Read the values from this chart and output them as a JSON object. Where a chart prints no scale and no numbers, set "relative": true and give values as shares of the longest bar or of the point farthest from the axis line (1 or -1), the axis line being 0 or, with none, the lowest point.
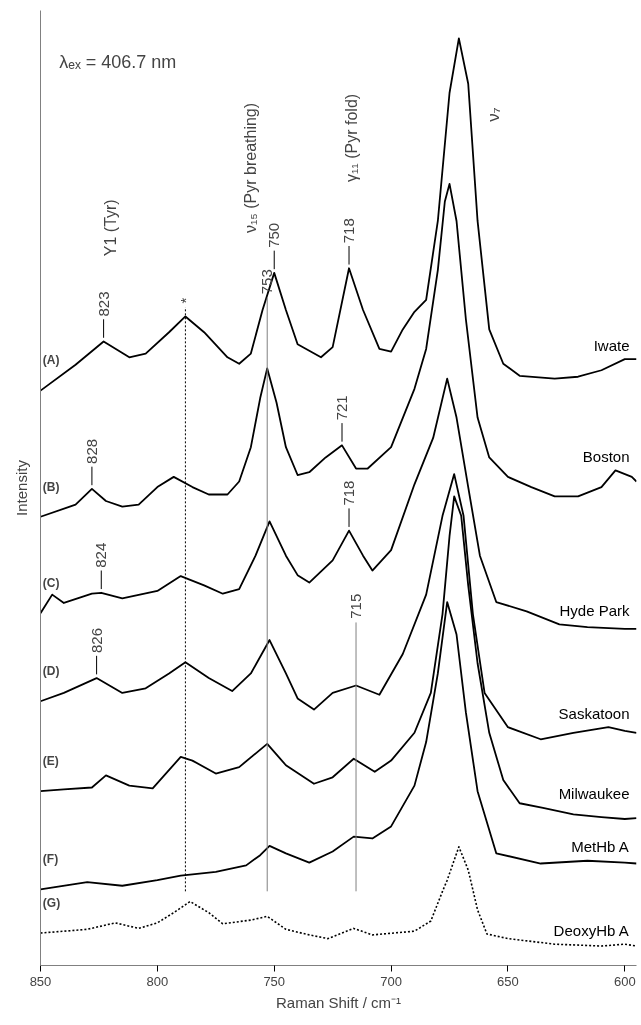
{
  "chart_data": {
    "type": "line",
    "relative": true,
    "xlabel": "Raman Shift / cm⁻¹",
    "ylabel": "Intensity",
    "xlim": [
      850,
      595
    ],
    "xticks": [
      850,
      800,
      750,
      700,
      650,
      600
    ],
    "grid": false,
    "marker": "none",
    "tick_labels": "x",
    "series": [
      {
        "name": "Iwate",
        "color": "#000000",
        "x": [
          850,
          835,
          823,
          812,
          805,
          795,
          788,
          780,
          770,
          765,
          760,
          755,
          750,
          745,
          740,
          730,
          725,
          718,
          712,
          705,
          700,
          695,
          690,
          685,
          680,
          675,
          671,
          667,
          663,
          658,
          652,
          645,
          630,
          620,
          610,
          600,
          595
        ],
        "values": [
          0.62,
          0.648,
          0.673,
          0.656,
          0.66,
          0.683,
          0.7,
          0.683,
          0.656,
          0.649,
          0.66,
          0.707,
          0.747,
          0.707,
          0.67,
          0.656,
          0.667,
          0.752,
          0.707,
          0.665,
          0.662,
          0.686,
          0.705,
          0.718,
          0.803,
          0.941,
          1.0,
          0.951,
          0.803,
          0.686,
          0.649,
          0.636,
          0.633,
          0.635,
          0.642,
          0.654,
          0.654
        ]
      },
      {
        "name": "Boston",
        "color": "#000000",
        "x": [
          850,
          835,
          828,
          822,
          815,
          808,
          800,
          793,
          785,
          778,
          770,
          765,
          760,
          756,
          753,
          749,
          745,
          740,
          735,
          728,
          721,
          715,
          710,
          700,
          690,
          685,
          680,
          677,
          675,
          672,
          668,
          663,
          658,
          650,
          640,
          630,
          620,
          610,
          604,
          597,
          595
        ],
        "values": [
          0.484,
          0.497,
          0.514,
          0.501,
          0.495,
          0.497,
          0.516,
          0.527,
          0.516,
          0.508,
          0.508,
          0.522,
          0.559,
          0.612,
          0.644,
          0.607,
          0.559,
          0.529,
          0.532,
          0.548,
          0.561,
          0.536,
          0.536,
          0.559,
          0.622,
          0.665,
          0.75,
          0.824,
          0.843,
          0.803,
          0.697,
          0.591,
          0.548,
          0.527,
          0.516,
          0.506,
          0.506,
          0.516,
          0.534,
          0.527,
          0.522
        ]
      },
      {
        "name": "Hyde Park",
        "color": "#000000",
        "x": [
          850,
          845,
          840,
          828,
          824,
          815,
          800,
          790,
          780,
          772,
          765,
          758,
          752,
          745,
          740,
          735,
          725,
          718,
          712,
          708,
          700,
          690,
          682,
          676,
          672,
          667,
          662,
          655,
          642,
          628,
          616,
          600,
          595
        ],
        "values": [
          0.38,
          0.4,
          0.391,
          0.401,
          0.402,
          0.396,
          0.404,
          0.42,
          0.41,
          0.401,
          0.406,
          0.442,
          0.479,
          0.442,
          0.421,
          0.413,
          0.437,
          0.469,
          0.442,
          0.426,
          0.448,
          0.519,
          0.569,
          0.633,
          0.591,
          0.516,
          0.442,
          0.392,
          0.382,
          0.368,
          0.365,
          0.363,
          0.363
        ]
      },
      {
        "name": "Saskatoon",
        "color": "#000000",
        "x": [
          850,
          840,
          826,
          815,
          805,
          795,
          788,
          778,
          768,
          760,
          752,
          745,
          740,
          733,
          725,
          715,
          705,
          695,
          685,
          678,
          673,
          669,
          665,
          660,
          650,
          636,
          622,
          607,
          600,
          595
        ],
        "values": [
          0.285,
          0.294,
          0.31,
          0.294,
          0.299,
          0.315,
          0.327,
          0.31,
          0.296,
          0.315,
          0.351,
          0.315,
          0.288,
          0.276,
          0.294,
          0.302,
          0.292,
          0.336,
          0.4,
          0.485,
          0.53,
          0.485,
          0.379,
          0.294,
          0.257,
          0.244,
          0.251,
          0.257,
          0.253,
          0.251
        ]
      },
      {
        "name": "Milwaukee",
        "color": "#000000",
        "x": [
          850,
          840,
          828,
          822,
          812,
          802,
          790,
          785,
          775,
          765,
          753,
          745,
          733,
          725,
          716,
          707,
          700,
          690,
          683,
          678,
          675,
          673,
          670,
          667,
          663,
          658,
          652,
          645,
          635,
          622,
          610,
          600,
          595
        ],
        "values": [
          0.188,
          0.19,
          0.192,
          0.205,
          0.194,
          0.191,
          0.225,
          0.221,
          0.207,
          0.214,
          0.239,
          0.216,
          0.196,
          0.203,
          0.223,
          0.209,
          0.221,
          0.251,
          0.294,
          0.379,
          0.463,
          0.506,
          0.485,
          0.41,
          0.326,
          0.251,
          0.2,
          0.175,
          0.17,
          0.163,
          0.16,
          0.158,
          0.159
        ]
      },
      {
        "name": "MetHb A",
        "color": "#000000",
        "x": [
          850,
          830,
          815,
          800,
          790,
          775,
          762,
          756,
          752,
          745,
          735,
          725,
          716,
          708,
          700,
          690,
          685,
          680,
          676,
          672,
          668,
          663,
          655,
          636,
          616,
          600,
          595
        ],
        "values": [
          0.082,
          0.09,
          0.086,
          0.092,
          0.097,
          0.101,
          0.108,
          0.119,
          0.129,
          0.121,
          0.111,
          0.123,
          0.139,
          0.137,
          0.15,
          0.194,
          0.241,
          0.315,
          0.392,
          0.357,
          0.273,
          0.188,
          0.121,
          0.11,
          0.113,
          0.111,
          0.11
        ]
      },
      {
        "name": "DeoxyHb A",
        "color": "#000000",
        "line_style": "dotted",
        "x": [
          850,
          830,
          818,
          808,
          800,
          793,
          786,
          778,
          772,
          760,
          753,
          745,
          735,
          727,
          716,
          708,
          690,
          683,
          678,
          676,
          671,
          667,
          663,
          659,
          650,
          630,
          610,
          600,
          595
        ],
        "values": [
          0.035,
          0.039,
          0.046,
          0.04,
          0.046,
          0.057,
          0.069,
          0.057,
          0.045,
          0.049,
          0.053,
          0.039,
          0.033,
          0.029,
          0.04,
          0.033,
          0.037,
          0.048,
          0.08,
          0.092,
          0.128,
          0.103,
          0.06,
          0.034,
          0.029,
          0.023,
          0.021,
          0.023,
          0.021
        ]
      }
    ],
    "ref_lines": [
      {
        "axis": "x",
        "value": 788,
        "label": "*",
        "line_style": "dotted",
        "color": "#000000"
      },
      {
        "axis": "x",
        "value": 753,
        "label": "753",
        "line_style": "solid",
        "color": "#808080"
      },
      {
        "axis": "x",
        "value": 715,
        "label": "715",
        "line_style": "solid",
        "color": "#808080"
      }
    ],
    "annotations": [
      "λₑₓ = 406.7 nm",
      "ν₇",
      "ν₁₅ (Pyr breathing)",
      "γ₁₁ (Pyr fold)",
      "Y1 (Tyr)",
      {
        "text": "823",
        "x": 823,
        "y": 0.673
      },
      {
        "text": "750",
        "x": 750,
        "y": 0.747
      },
      {
        "text": "718",
        "x": 718,
        "y": 0.752
      },
      {
        "text": "828",
        "x": 828,
        "y": 0.514
      },
      {
        "text": "721",
        "x": 721,
        "y": 0.561
      },
      {
        "text": "718",
        "x": 718,
        "y": 0.469
      },
      {
        "text": "824",
        "x": 824,
        "y": 0.402
      },
      {
        "text": "826",
        "x": 826,
        "y": 0.31
      },
      {
        "text": "(A)",
        "x": 850,
        "y": 0.62
      },
      {
        "text": "(B)",
        "x": 850,
        "y": 0.484
      },
      {
        "text": "(C)",
        "x": 850,
        "y": 0.38
      },
      {
        "text": "(D)",
        "x": 850,
        "y": 0.285
      },
      {
        "text": "(E)",
        "x": 850,
        "y": 0.188
      },
      {
        "text": "(F)",
        "x": 850,
        "y": 0.082
      },
      {
        "text": "(G)",
        "x": 850,
        "y": 0.035
      }
    ]
  }
}
